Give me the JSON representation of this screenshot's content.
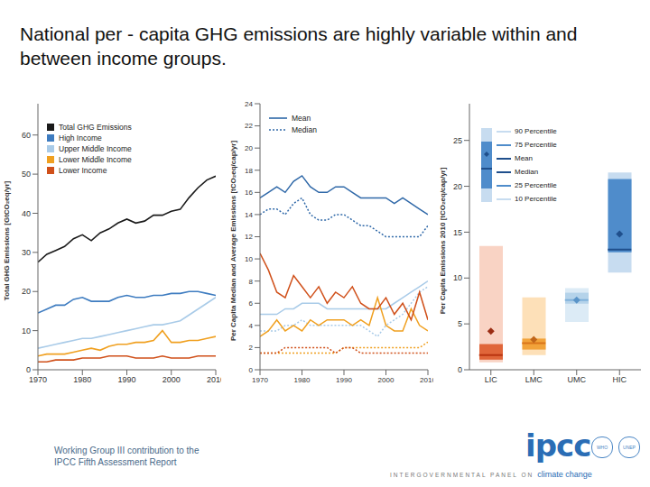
{
  "title": "National per - capita GHG emissions are highly variable within and between income groups.",
  "chart_data": [
    {
      "type": "line",
      "y_label": "Total GHG Emissions [GtCO₂eq/yr]",
      "x": [
        1970,
        1972,
        1974,
        1976,
        1978,
        1980,
        1982,
        1984,
        1986,
        1988,
        1990,
        1992,
        1994,
        1996,
        1998,
        2000,
        2002,
        2004,
        2006,
        2008,
        2010
      ],
      "xlim": [
        1970,
        2010
      ],
      "xticks": [
        1970,
        1980,
        1990,
        2000,
        2010
      ],
      "ylim": [
        0,
        68
      ],
      "yticks": [
        0,
        10,
        20,
        30,
        40,
        50,
        60
      ],
      "legend": "upper left",
      "series": [
        {
          "name": "Total GHG Emissions",
          "color": "#1a1a1a",
          "values": [
            27.5,
            29.5,
            30.5,
            31.5,
            33.5,
            34.5,
            33.0,
            35.0,
            36.0,
            37.5,
            38.5,
            37.5,
            38.0,
            39.5,
            39.5,
            40.5,
            41.0,
            44.0,
            46.5,
            48.5,
            49.5
          ]
        },
        {
          "name": "High Income",
          "color": "#3e7cc0",
          "values": [
            14.5,
            15.5,
            16.5,
            16.5,
            18.0,
            18.5,
            17.5,
            17.5,
            17.5,
            18.5,
            19.0,
            18.5,
            18.5,
            19.0,
            19.0,
            19.5,
            19.5,
            20.0,
            20.0,
            19.5,
            19.0
          ]
        },
        {
          "name": "Upper Middle Income",
          "color": "#a9cbe8",
          "values": [
            5.5,
            6.0,
            6.5,
            7.0,
            7.5,
            8.0,
            8.0,
            8.5,
            9.0,
            9.5,
            10.0,
            10.5,
            11.0,
            11.5,
            11.5,
            12.0,
            12.5,
            14.0,
            15.5,
            17.0,
            18.5
          ]
        },
        {
          "name": "Lower Middle Income",
          "color": "#f0a020",
          "values": [
            3.5,
            4.0,
            4.0,
            4.0,
            4.5,
            5.0,
            5.5,
            5.0,
            6.0,
            6.5,
            6.5,
            7.0,
            7.0,
            7.5,
            10.0,
            7.0,
            7.0,
            7.5,
            7.5,
            8.0,
            8.5
          ]
        },
        {
          "name": "Lower Income",
          "color": "#d0501a",
          "values": [
            2.0,
            2.0,
            2.5,
            2.5,
            2.5,
            3.0,
            3.0,
            3.0,
            3.5,
            3.5,
            3.5,
            3.0,
            3.0,
            3.0,
            3.5,
            3.0,
            3.0,
            3.0,
            3.5,
            3.5,
            3.5
          ]
        }
      ]
    },
    {
      "type": "line",
      "y_label": "Per Capita Median and Average Emissions [tCO₂eq/cap/yr]",
      "x": [
        1970,
        1972,
        1974,
        1976,
        1978,
        1980,
        1982,
        1984,
        1986,
        1988,
        1990,
        1992,
        1994,
        1996,
        1998,
        2000,
        2002,
        2004,
        2006,
        2008,
        2010
      ],
      "xlim": [
        1970,
        2010
      ],
      "xticks": [
        1970,
        1980,
        1990,
        2000,
        2010
      ],
      "ylim": [
        0,
        24
      ],
      "yticks": [
        0,
        2,
        4,
        6,
        8,
        10,
        12,
        14,
        16,
        18,
        20,
        22,
        24
      ],
      "legend": "upper left",
      "series": [
        {
          "name": "Mean",
          "color": "#2f68a8",
          "line_style": "solid",
          "values": [
            15.5,
            16.0,
            16.5,
            16.0,
            17.0,
            17.5,
            16.5,
            16.0,
            16.0,
            16.5,
            16.5,
            16.0,
            15.5,
            15.5,
            15.5,
            15.5,
            15.0,
            15.5,
            15.0,
            14.5,
            14.0
          ]
        },
        {
          "name": "Median",
          "color": "#2f68a8",
          "line_style": "dotted",
          "values": [
            14.0,
            14.5,
            14.5,
            14.0,
            15.0,
            15.5,
            14.0,
            13.5,
            13.5,
            14.0,
            14.0,
            13.5,
            13.0,
            13.0,
            12.5,
            12.0,
            12.0,
            12.0,
            12.0,
            12.0,
            13.0
          ]
        },
        {
          "name": "Mean",
          "color": "#a9cbe8",
          "line_style": "solid",
          "values": [
            5.0,
            5.0,
            5.0,
            5.5,
            5.5,
            6.0,
            6.0,
            6.0,
            5.5,
            5.5,
            5.5,
            5.5,
            5.5,
            5.5,
            5.5,
            5.5,
            6.0,
            6.5,
            7.0,
            7.5,
            8.0
          ]
        },
        {
          "name": "Median",
          "color": "#a9cbe8",
          "line_style": "dotted",
          "values": [
            3.5,
            3.5,
            3.5,
            4.0,
            4.0,
            4.5,
            4.0,
            4.0,
            4.0,
            4.0,
            4.0,
            4.0,
            4.0,
            3.5,
            3.0,
            4.0,
            4.5,
            5.0,
            6.0,
            7.0,
            7.5
          ]
        },
        {
          "name": "Mean",
          "color": "#f0a020",
          "line_style": "solid",
          "values": [
            3.0,
            3.5,
            4.5,
            3.5,
            4.0,
            3.5,
            4.5,
            4.0,
            4.5,
            4.5,
            4.5,
            4.0,
            4.5,
            4.0,
            6.5,
            4.0,
            3.5,
            3.5,
            5.5,
            4.0,
            3.5
          ]
        },
        {
          "name": "Median",
          "color": "#f0a020",
          "line_style": "dotted",
          "values": [
            1.5,
            1.5,
            1.5,
            1.5,
            1.5,
            1.5,
            1.5,
            1.5,
            1.5,
            1.5,
            2.0,
            2.0,
            2.0,
            2.0,
            2.0,
            2.0,
            2.0,
            2.0,
            2.0,
            2.0,
            2.5
          ]
        },
        {
          "name": "Mean",
          "color": "#d0501a",
          "line_style": "solid",
          "values": [
            10.5,
            9.0,
            7.0,
            6.5,
            8.5,
            7.5,
            6.5,
            7.5,
            6.0,
            7.0,
            6.5,
            7.5,
            6.0,
            5.5,
            5.5,
            6.5,
            5.0,
            6.0,
            4.5,
            7.0,
            4.5
          ]
        },
        {
          "name": "Median",
          "color": "#d0501a",
          "line_style": "dotted",
          "values": [
            1.5,
            1.5,
            1.5,
            2.0,
            2.0,
            2.0,
            2.0,
            2.0,
            2.0,
            1.5,
            2.0,
            2.0,
            1.5,
            1.5,
            1.5,
            1.5,
            1.5,
            1.5,
            1.5,
            1.5,
            1.5
          ]
        }
      ]
    },
    {
      "type": "box",
      "y_label": "Per Capita Emissions 2010 [tCO₂eq/cap/yr]",
      "categories": [
        "LIC",
        "LMC",
        "UMC",
        "HIC"
      ],
      "ylim": [
        0,
        29
      ],
      "yticks": [
        0,
        5,
        10,
        15,
        20,
        25
      ],
      "legend": "upper left",
      "series": [
        {
          "name": "90 Percentile",
          "values": [
            13.5,
            7.9,
            8.9,
            21.5
          ],
          "colors": [
            "#f9d3c4",
            "#fde0b8",
            "#dcebf6",
            "#c7dcf0"
          ]
        },
        {
          "name": "75 Percentile",
          "values": [
            2.8,
            3.4,
            8.4,
            20.8
          ],
          "colors": [
            "#e0663a",
            "#f2a33a",
            "#b5d3ea",
            "#4f8ccb"
          ]
        },
        {
          "name": "Mean",
          "marker": "diamond",
          "values": [
            4.2,
            3.3,
            7.6,
            14.8
          ],
          "colors": [
            "#9b2d14",
            "#c0661a",
            "#5a94c8",
            "#1f4f8c"
          ]
        },
        {
          "name": "Median",
          "marker": "dash",
          "values": [
            1.6,
            2.9,
            7.6,
            13.1
          ],
          "colors": [
            "#b8330f",
            "#d9751a",
            "#7fb0da",
            "#1f4f8c"
          ]
        },
        {
          "name": "25 Percentile",
          "values": [
            1.1,
            2.2,
            7.2,
            12.8
          ]
        },
        {
          "name": "10 Percentile",
          "values": [
            0.8,
            1.6,
            5.2,
            10.6
          ]
        }
      ]
    }
  ],
  "footer": {
    "text": "Working Group III contribution to the IPCC Fifth Assessment Report",
    "logo": "ipcc",
    "tagline": "INTERGOVERNMENTAL PANEL ON",
    "tagline_emphasis": "climate change",
    "partner_logos": [
      "WHO",
      "UNEP"
    ]
  }
}
